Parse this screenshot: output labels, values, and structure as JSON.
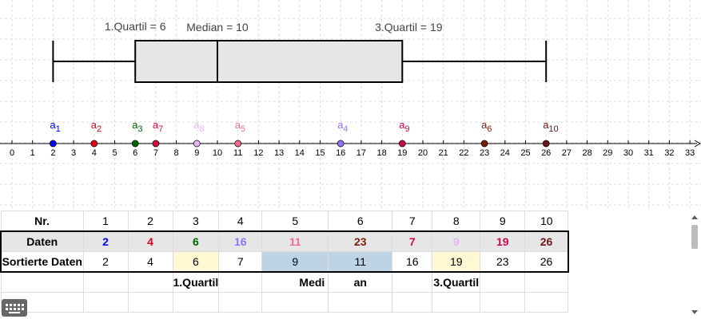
{
  "boxplot": {
    "min": 2,
    "q1": 6,
    "median": 10,
    "q3": 19,
    "max": 26,
    "q1_label": "1.Quartil = 6",
    "median_label": "Median = 10",
    "q3_label": "3.Quartil = 19"
  },
  "axis": {
    "min": 0,
    "max": 33,
    "ticks": [
      "0",
      "1",
      "2",
      "3",
      "4",
      "5",
      "6",
      "7",
      "8",
      "9",
      "10",
      "11",
      "12",
      "13",
      "14",
      "15",
      "16",
      "17",
      "18",
      "19",
      "20",
      "21",
      "22",
      "23",
      "24",
      "25",
      "26",
      "27",
      "28",
      "29",
      "30",
      "31",
      "32",
      "33"
    ]
  },
  "points": [
    {
      "letter": "a",
      "index": "1",
      "value": 2,
      "color": "#0000ff"
    },
    {
      "letter": "a",
      "index": "2",
      "value": 4,
      "color": "#e0001a"
    },
    {
      "letter": "a",
      "index": "3",
      "value": 6,
      "color": "#006400"
    },
    {
      "letter": "a",
      "index": "4",
      "value": 16,
      "color": "#9370ff"
    },
    {
      "letter": "a",
      "index": "5",
      "value": 11,
      "color": "#f06e8c"
    },
    {
      "letter": "a",
      "index": "6",
      "value": 23,
      "color": "#7a1e0a"
    },
    {
      "letter": "a",
      "index": "7",
      "value": 7,
      "color": "#d0103a"
    },
    {
      "letter": "a",
      "index": "8",
      "value": 9,
      "color": "#e6b4f0"
    },
    {
      "letter": "a",
      "index": "9",
      "value": 19,
      "color": "#c80a50"
    },
    {
      "letter": "a",
      "index": "10",
      "value": 26,
      "color": "#6b1a1a"
    }
  ],
  "table": {
    "header_label": "Nr.",
    "numbers": [
      "1",
      "2",
      "3",
      "4",
      "5",
      "6",
      "7",
      "8",
      "9",
      "10"
    ],
    "data_label": "Daten",
    "data": [
      {
        "text": "2",
        "color": "#0000ff"
      },
      {
        "text": "4",
        "color": "#e0001a"
      },
      {
        "text": "6",
        "color": "#006400"
      },
      {
        "text": "16",
        "color": "#9370ff"
      },
      {
        "text": "11",
        "color": "#f06e8c"
      },
      {
        "text": "23",
        "color": "#7a1e0a"
      },
      {
        "text": "7",
        "color": "#d0103a"
      },
      {
        "text": "9",
        "color": "#e6b4f0"
      },
      {
        "text": "19",
        "color": "#c80a50"
      },
      {
        "text": "26",
        "color": "#6b1a1a"
      }
    ],
    "sorted_label": "Sortierte Daten",
    "sorted": [
      "2",
      "4",
      "6",
      "7",
      "9",
      "11",
      "16",
      "19",
      "23",
      "26"
    ],
    "marker_q1": "1.Quartil",
    "marker_median_a": "Medi",
    "marker_median_b": "an",
    "marker_q3": "3.Quartil"
  }
}
